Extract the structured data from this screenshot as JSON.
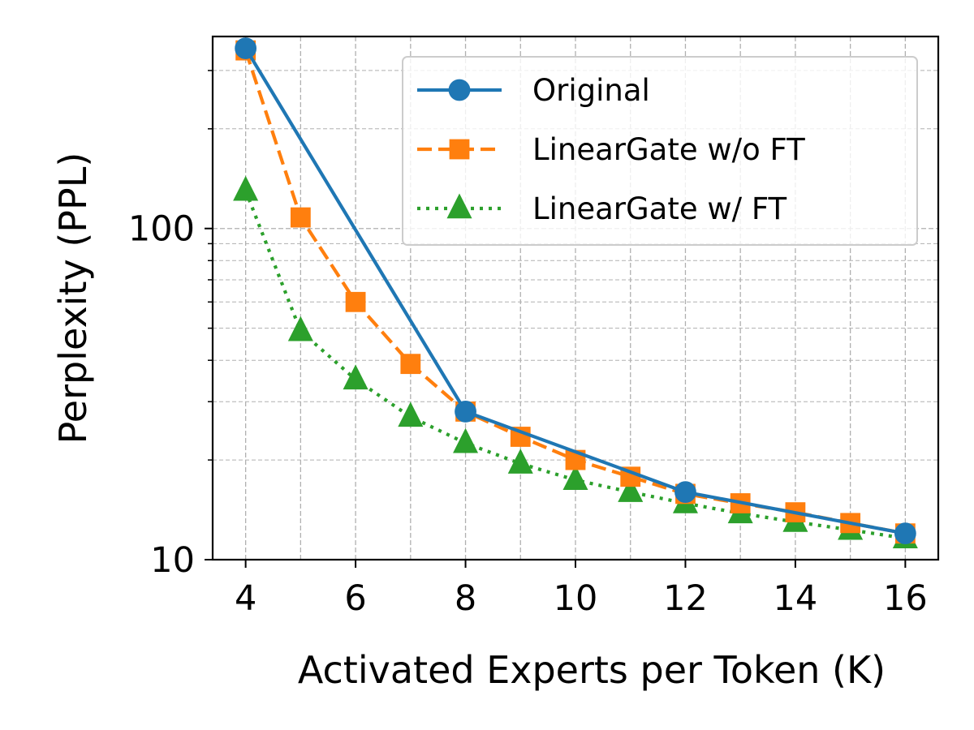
{
  "chart_data": {
    "type": "line",
    "title": "",
    "xlabel": "Activated Experts per Token (K)",
    "ylabel": "Perplexity (PPL)",
    "yscale": "log",
    "xlim": [
      3.4,
      16.6
    ],
    "ylim": [
      10,
      380
    ],
    "xticks": [
      4,
      6,
      8,
      10,
      12,
      14,
      16
    ],
    "xtick_labels": [
      "4",
      "6",
      "8",
      "10",
      "12",
      "14",
      "16"
    ],
    "yticks": [
      10,
      100
    ],
    "ytick_labels": [
      "10",
      "100"
    ],
    "grid": true,
    "legend_position": "top-right",
    "series": [
      {
        "name": "Original",
        "color": "#1f77b4",
        "linestyle": "solid",
        "marker": "circle",
        "x": [
          4,
          8,
          12,
          16
        ],
        "y": [
          350,
          28,
          16,
          12
        ]
      },
      {
        "name": "LinearGate w/o FT",
        "color": "#ff7f0e",
        "linestyle": "dashed",
        "marker": "square",
        "x": [
          4,
          5,
          6,
          7,
          8,
          9,
          10,
          11,
          12,
          13,
          14,
          15,
          16
        ],
        "y": [
          345,
          108,
          60,
          39,
          28,
          23.5,
          20,
          17.8,
          15.8,
          14.8,
          13.9,
          12.9,
          12
        ]
      },
      {
        "name": "LinearGate w/ FT",
        "color": "#2ca02c",
        "linestyle": "dotted",
        "marker": "triangle",
        "x": [
          4,
          5,
          6,
          7,
          8,
          9,
          10,
          11,
          12,
          13,
          14,
          15,
          16
        ],
        "y": [
          130,
          49,
          35,
          27,
          22.5,
          19.5,
          17.4,
          16,
          14.8,
          13.8,
          13,
          12.3,
          11.6
        ]
      }
    ]
  }
}
